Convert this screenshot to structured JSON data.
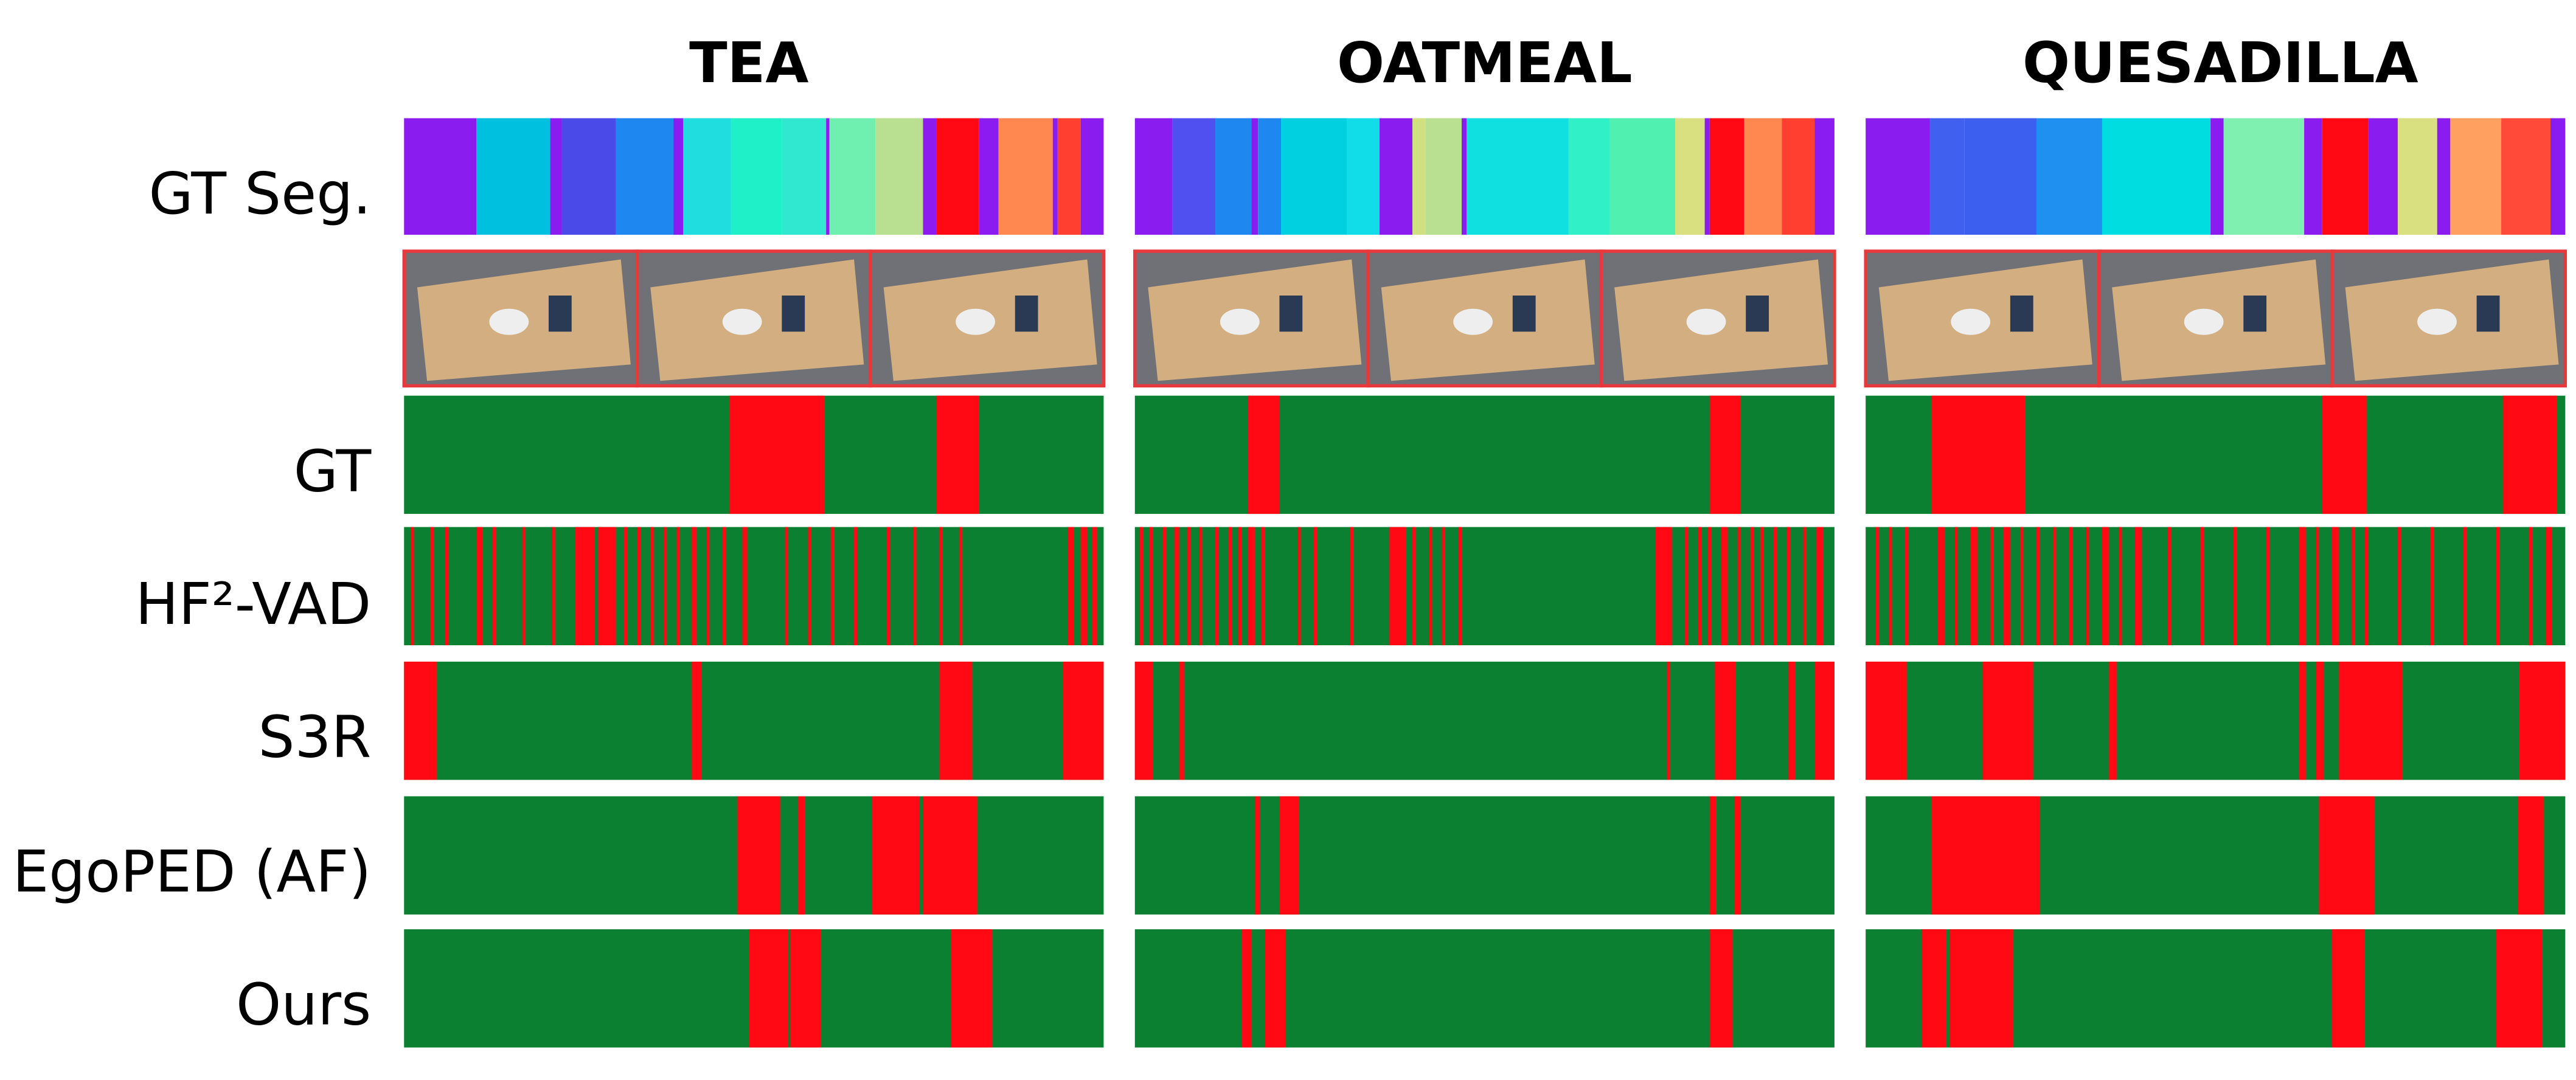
{
  "columns": [
    "TEA",
    "OATMEAL",
    "QUESADILLA"
  ],
  "rows": [
    "GT Seg.",
    "GT",
    "HF²-VAD",
    "S3R",
    "EgoPED (AF)",
    "Ours"
  ]
}
